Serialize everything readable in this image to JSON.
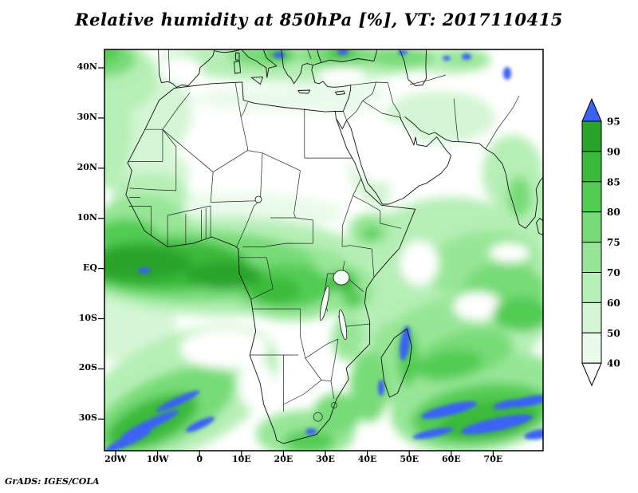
{
  "title": "Relative humidity at 850hPa [%], VT: 2017110415",
  "attribution": "GrADS: IGES/COLA",
  "axes": {
    "y_ticks": [
      "40N",
      "30N",
      "20N",
      "10N",
      "EQ",
      "10S",
      "20S",
      "30S"
    ],
    "x_ticks": [
      "20W",
      "10W",
      "0",
      "10E",
      "20E",
      "30E",
      "40E",
      "50E",
      "60E",
      "70E"
    ]
  },
  "colorbar": {
    "labels": [
      "95",
      "90",
      "85",
      "80",
      "75",
      "70",
      "60",
      "50",
      "40"
    ],
    "top_arrow_color": "#3a62f5",
    "bottom_arrow_color": "#ffffff",
    "segment_colors_top_to_bottom": [
      "#2aa42a",
      "#3aba3a",
      "#53cc53",
      "#77db77",
      "#97e697",
      "#b6efb6",
      "#d4f6d4",
      "#eafbea"
    ]
  },
  "chart_data": {
    "type": "heatmap",
    "title": "Relative humidity at 850hPa [%], VT: 2017110415",
    "variable": "Relative humidity",
    "level_hPa": 850,
    "units": "%",
    "valid_time": "2017110415",
    "x_axis": {
      "ticks": [
        "20W",
        "10W",
        "0",
        "10E",
        "20E",
        "30E",
        "40E",
        "50E",
        "60E",
        "70E"
      ],
      "range_deg_lon": [
        -22.5,
        81.5
      ]
    },
    "y_axis": {
      "ticks": [
        "40N",
        "30N",
        "20N",
        "10N",
        "EQ",
        "10S",
        "20S",
        "30S"
      ],
      "range_deg_lat": [
        -36,
        44
      ]
    },
    "color_levels": [
      40,
      50,
      60,
      70,
      75,
      80,
      85,
      90,
      95
    ],
    "colors_low_to_high": [
      "#ffffff",
      "#eafbea",
      "#d4f6d4",
      "#b6efb6",
      "#97e697",
      "#77db77",
      "#53cc53",
      "#3aba3a",
      "#2aa42a",
      "#3a62f5"
    ],
    "legend_position": "right",
    "grid_estimate": {
      "lats": [
        "40N",
        "30N",
        "20N",
        "10N",
        "EQ",
        "10S",
        "20S",
        "30S"
      ],
      "lons": [
        "20W",
        "10W",
        "0",
        "10E",
        "20E",
        "30E",
        "40E",
        "50E",
        "60E",
        "70E"
      ],
      "values_percent": [
        [
          75,
          70,
          65,
          60,
          70,
          75,
          60,
          50,
          45,
          55
        ],
        [
          60,
          50,
          40,
          40,
          45,
          50,
          45,
          40,
          40,
          50
        ],
        [
          35,
          30,
          30,
          30,
          35,
          40,
          45,
          50,
          55,
          60
        ],
        [
          70,
          60,
          50,
          50,
          55,
          50,
          55,
          65,
          70,
          65
        ],
        [
          90,
          92,
          90,
          85,
          85,
          80,
          75,
          80,
          85,
          80
        ],
        [
          75,
          70,
          65,
          70,
          75,
          70,
          65,
          70,
          80,
          75
        ],
        [
          55,
          50,
          45,
          50,
          55,
          50,
          55,
          60,
          70,
          75
        ],
        [
          60,
          65,
          55,
          50,
          55,
          60,
          70,
          85,
          90,
          80
        ]
      ]
    }
  }
}
